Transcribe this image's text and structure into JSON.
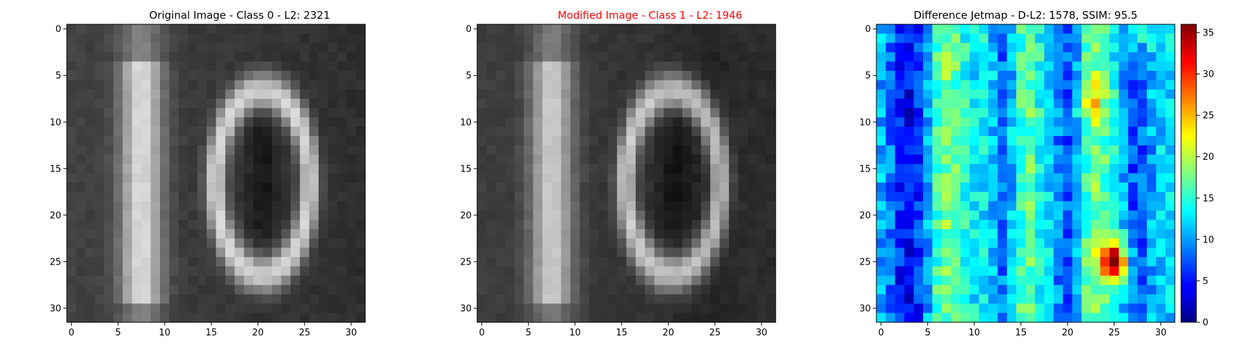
{
  "chart_data": [
    {
      "type": "heatmap",
      "title": "Original Image - Class 0 - L2: 2321",
      "title_color": "#000000",
      "colormap": "gray",
      "xlim": [
        -0.5,
        31.5
      ],
      "ylim": [
        31.5,
        -0.5
      ],
      "xticks": [
        0,
        5,
        10,
        15,
        20,
        25,
        30
      ],
      "yticks": [
        0,
        5,
        10,
        15,
        20,
        25,
        30
      ],
      "grid": false
    },
    {
      "type": "heatmap",
      "title": "Modified Image - Class 1 - L2: 1946",
      "title_color": "#ff0000",
      "colormap": "gray",
      "xlim": [
        -0.5,
        31.5
      ],
      "ylim": [
        31.5,
        -0.5
      ],
      "xticks": [
        0,
        5,
        10,
        15,
        20,
        25,
        30
      ],
      "yticks": [
        0,
        5,
        10,
        15,
        20,
        25,
        30
      ],
      "grid": false
    },
    {
      "type": "heatmap",
      "title": "Difference Jetmap - D-L2: 1578, SSIM: 95.5",
      "title_color": "#000000",
      "colormap": "jet",
      "xlim": [
        -0.5,
        31.5
      ],
      "ylim": [
        31.5,
        -0.5
      ],
      "xticks": [
        0,
        5,
        10,
        15,
        20,
        25,
        30
      ],
      "yticks": [
        0,
        5,
        10,
        15,
        20,
        25,
        30
      ],
      "colorbar": {
        "range": [
          0,
          36
        ],
        "ticks": [
          0,
          5,
          10,
          15,
          20,
          25,
          30,
          35
        ]
      },
      "grid": false
    }
  ]
}
